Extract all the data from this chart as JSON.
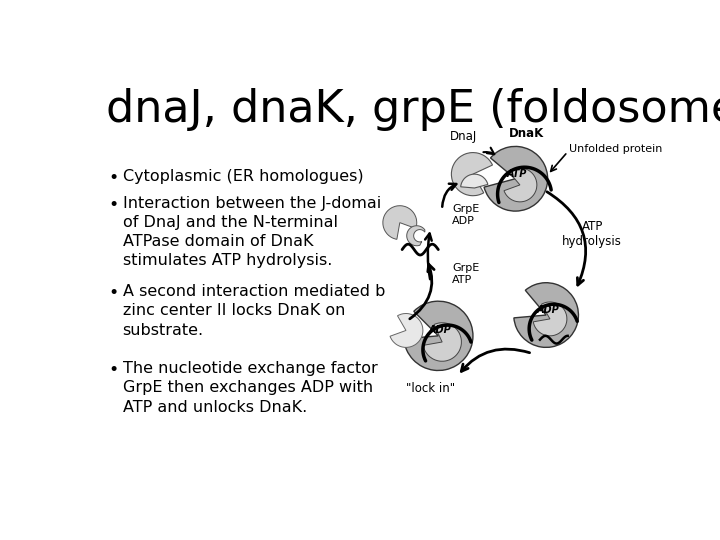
{
  "title": "dnaJ, dnaK, grpE (foldosome)",
  "title_fontsize": 32,
  "background_color": "#ffffff",
  "text_color": "#000000",
  "bullet_points": [
    "Cytoplasmic (ER homologues)",
    "Interaction between the J-domai\nof DnaJ and the N-terminal\nATPase domain of DnaK\nstimulates ATP hydrolysis.",
    "A second interaction mediated b\nzinc center II locks DnaK on\nsubstrate.",
    "The nucleotide exchange factor\nGrpE then exchanges ADP with\nATP and unlocks DnaK."
  ],
  "font_size": 11.5,
  "gray_dark": "#808080",
  "gray_light": "#c0c0c0",
  "gray_mid": "#a0a0a0"
}
